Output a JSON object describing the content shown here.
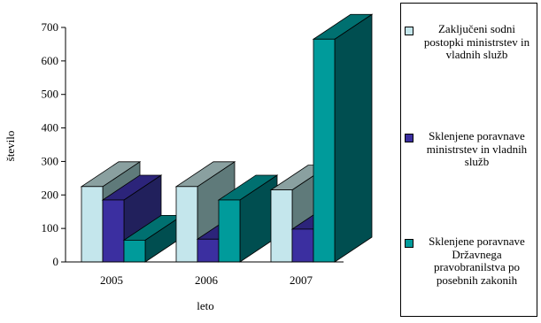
{
  "chart_data": {
    "type": "bar",
    "style": "3d-clustered",
    "categories": [
      "2005",
      "2006",
      "2007"
    ],
    "series": [
      {
        "name": "Zaključeni sodni postopki ministrstev in vladnih služb",
        "values": [
          225,
          225,
          215
        ],
        "color": "#c4e6ec"
      },
      {
        "name": "Sklenjene poravnave ministrstev in vladnih služb",
        "values": [
          185,
          68,
          98
        ],
        "color": "#3b2fa0"
      },
      {
        "name": "Sklenjene poravnave Državnega pravobranilstva po posebnih zakonih",
        "values": [
          65,
          185,
          665
        ],
        "color": "#009b9b"
      }
    ],
    "xlabel": "leto",
    "ylabel": "število",
    "ylim": [
      0,
      700
    ],
    "yticks": [
      "0",
      "100",
      "200",
      "300",
      "400",
      "500",
      "600",
      "700"
    ],
    "grid": false,
    "legend_position": "right"
  }
}
